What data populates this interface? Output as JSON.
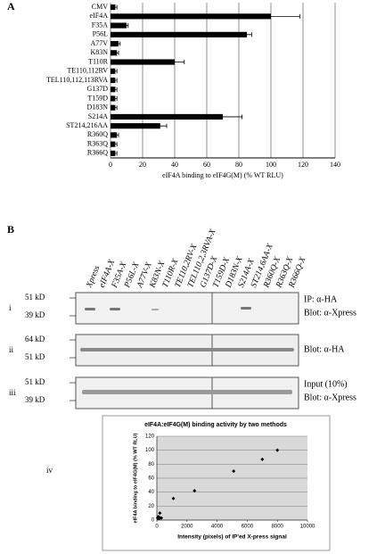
{
  "panel_labels": [
    "A",
    "B"
  ],
  "chart_data": [
    {
      "type": "bar",
      "orientation": "horizontal",
      "categories": [
        "CMV",
        "eIF4A",
        "F35A",
        "P56L",
        "A77V",
        "K83N",
        "T110R",
        "TE110,112RV",
        "TEL110,112,113RVA",
        "G137D",
        "T159D",
        "D183N",
        "S214A",
        "ST214,216AA",
        "R360Q",
        "R363Q",
        "R366Q"
      ],
      "values": [
        3,
        100,
        10,
        85,
        5,
        4,
        40,
        3,
        3,
        3,
        3,
        3,
        70,
        31,
        4,
        3,
        3
      ],
      "errors": [
        1,
        18,
        1,
        3,
        1,
        1,
        6,
        1,
        1,
        1,
        1,
        1,
        12,
        4,
        1,
        1,
        1
      ],
      "color": "#000000",
      "xlim": [
        0,
        140
      ],
      "xticks": [
        0,
        20,
        40,
        60,
        80,
        100,
        120,
        140
      ],
      "grid": true,
      "xlabel": "eIF4A binding to eIF4G(M) (% WT RLU)"
    },
    {
      "type": "scatter",
      "title": "eIF4A:eIF4G(M) binding activity by two methods",
      "x": [
        8000,
        7000,
        5100,
        2500,
        1100,
        200,
        100,
        150,
        50,
        300,
        120,
        220
      ],
      "values": [
        100,
        87,
        70,
        42,
        31,
        10,
        5,
        4,
        3,
        3,
        2,
        3
      ],
      "color": "#000000",
      "xlim": [
        0,
        10000
      ],
      "xticks": [
        0,
        2000,
        4000,
        6000,
        8000,
        10000
      ],
      "ylim": [
        0,
        120
      ],
      "yticks": [
        0,
        20,
        40,
        60,
        80,
        100,
        120
      ],
      "grid": true,
      "xlabel": "Intensity (pixels) of IP'ed X-press signal",
      "ylabel": "eIF4A binding to eIF4G(M) (% WT RLU)"
    }
  ],
  "blot": {
    "lanes": [
      "Xpress",
      "eIF4A-X",
      "F35A-X",
      "P56L-X",
      "A77V-X",
      "K83N-X",
      "T110R-X",
      "TE110,2RV-X",
      "TEL110,2,3RVA-X",
      "G137D-X",
      "T159D-X",
      "D183N-X",
      "S214A-X",
      "ST214,6AA-X",
      "R360Q-X",
      "R363Q-X",
      "R366Q-X"
    ],
    "rows": [
      {
        "numeral": "i",
        "markers": [
          "51 kD",
          "39 kD"
        ],
        "labels": [
          "IP: α-HA",
          "Blot: α-Xpress"
        ]
      },
      {
        "numeral": "ii",
        "markers": [
          "64 kD",
          "51 kD"
        ],
        "labels": [
          "Blot: α-HA"
        ]
      },
      {
        "numeral": "iii",
        "markers": [
          "51 kD",
          "39 kD"
        ],
        "labels": [
          "Input (10%)",
          "Blot: α-Xpress"
        ]
      }
    ],
    "chart_numeral": "iv"
  }
}
